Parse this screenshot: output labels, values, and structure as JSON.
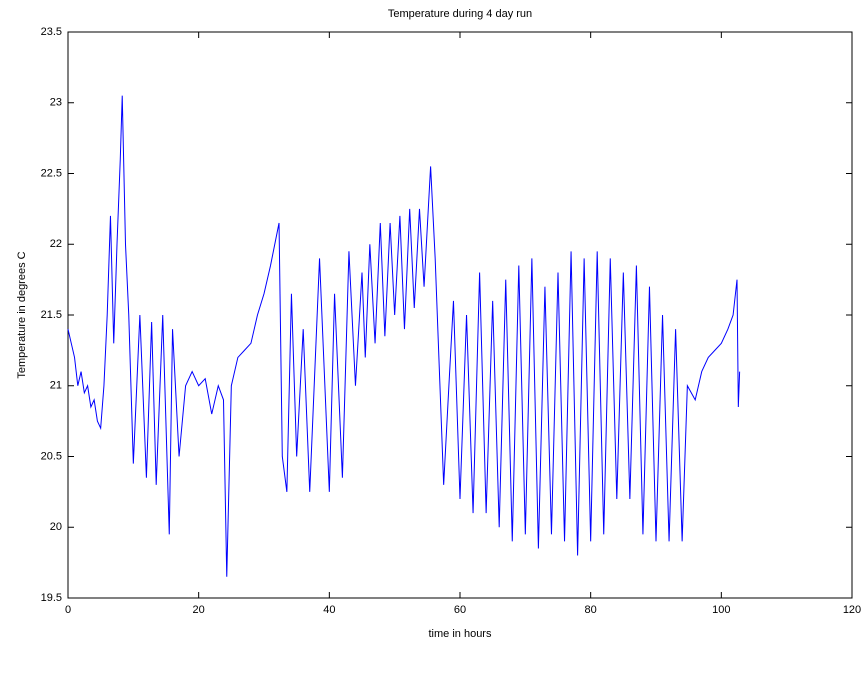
{
  "chart_data": {
    "type": "line",
    "title": "Temperature during 4 day run",
    "x_label": "time in hours",
    "y_label": "Temperature in degrees C",
    "xlim": [
      0,
      120
    ],
    "xticks": [
      0,
      20,
      40,
      60,
      80,
      100,
      120
    ],
    "ylim": [
      19.5,
      23.5
    ],
    "yticks": [
      19.5,
      20,
      20.5,
      21,
      21.5,
      22,
      22.5,
      23,
      23.5
    ],
    "color": "#0000ff",
    "x": [
      0,
      0.5,
      1,
      1.5,
      2,
      2.5,
      3,
      3.5,
      4,
      4.5,
      5,
      5.5,
      6,
      6.5,
      7,
      7.5,
      8,
      8.3,
      8.8,
      9.3,
      10,
      11,
      12,
      12.8,
      13.5,
      14.5,
      15.5,
      16,
      17,
      18,
      19,
      20,
      21,
      22,
      23,
      23.8,
      24.3,
      25,
      26,
      27,
      28,
      29,
      30,
      31,
      32.3,
      32.8,
      33.5,
      34.2,
      35,
      36,
      37,
      38.5,
      40,
      40.8,
      42,
      43,
      44,
      45,
      45.5,
      46.2,
      47,
      47.8,
      48.5,
      49.3,
      50,
      50.8,
      51.5,
      52.3,
      53,
      53.8,
      54.5,
      55.5,
      56.2,
      57.5,
      58.3,
      59,
      60,
      61,
      62,
      63,
      64,
      65,
      66,
      67,
      68,
      69,
      70,
      71,
      72,
      73,
      74,
      75,
      76,
      77,
      78,
      79,
      80,
      81,
      82,
      83,
      84,
      85,
      86,
      87,
      88,
      89,
      90,
      91,
      92,
      93,
      94,
      94.8,
      96,
      97,
      98,
      99,
      100,
      101,
      101.8,
      102.4,
      102.6,
      102.8
    ],
    "values": [
      21.4,
      21.3,
      21.2,
      21.0,
      21.1,
      20.95,
      21.0,
      20.85,
      20.9,
      20.75,
      20.7,
      21.0,
      21.5,
      22.2,
      21.3,
      22.0,
      22.6,
      23.05,
      22.0,
      21.5,
      20.45,
      21.5,
      20.35,
      21.45,
      20.3,
      21.5,
      19.95,
      21.4,
      20.5,
      21.0,
      21.1,
      21.0,
      21.05,
      20.8,
      21.0,
      20.9,
      19.65,
      21.0,
      21.2,
      21.25,
      21.3,
      21.5,
      21.65,
      21.85,
      22.15,
      20.5,
      20.25,
      21.65,
      20.5,
      21.4,
      20.25,
      21.9,
      20.25,
      21.65,
      20.35,
      21.95,
      21.0,
      21.8,
      21.2,
      22.0,
      21.3,
      22.15,
      21.35,
      22.15,
      21.5,
      22.2,
      21.4,
      22.25,
      21.55,
      22.25,
      21.7,
      22.55,
      21.9,
      20.3,
      21.0,
      21.6,
      20.2,
      21.5,
      20.1,
      21.8,
      20.1,
      21.6,
      20.0,
      21.75,
      19.9,
      21.85,
      19.95,
      21.9,
      19.85,
      21.7,
      19.95,
      21.8,
      19.9,
      21.95,
      19.8,
      21.9,
      19.9,
      21.95,
      19.95,
      21.9,
      20.2,
      21.8,
      20.2,
      21.85,
      19.95,
      21.7,
      19.9,
      21.5,
      19.9,
      21.4,
      19.9,
      21.0,
      20.9,
      21.1,
      21.2,
      21.25,
      21.3,
      21.4,
      21.5,
      21.75,
      20.85,
      21.1
    ]
  }
}
